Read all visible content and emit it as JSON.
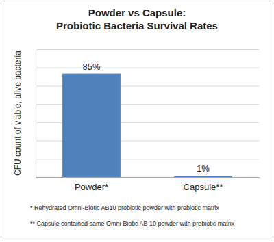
{
  "chart_data": {
    "type": "bar",
    "title": "Powder vs Capsule:\nProbiotic Bacteria Survival Rates",
    "y_label": "CFU count of viable, alive bacteria",
    "categories": [
      "Powder*",
      "Capsule**"
    ],
    "values": [
      85,
      1
    ],
    "value_labels": [
      "85%",
      "1%"
    ],
    "data_labels": true,
    "color": "#4f81bd",
    "ylim": [
      0,
      105
    ],
    "yticks": [
      0,
      15,
      30,
      45,
      60,
      75,
      90,
      105
    ],
    "grid": true,
    "tick_labels": "x",
    "annotations": [
      "* Rehydrated Omni-Biotic AB10 probiotic powder with prebiotic matrix",
      "** Capsule contained same Omni-Biotic AB 10 powder with prebiotic matrix"
    ]
  }
}
